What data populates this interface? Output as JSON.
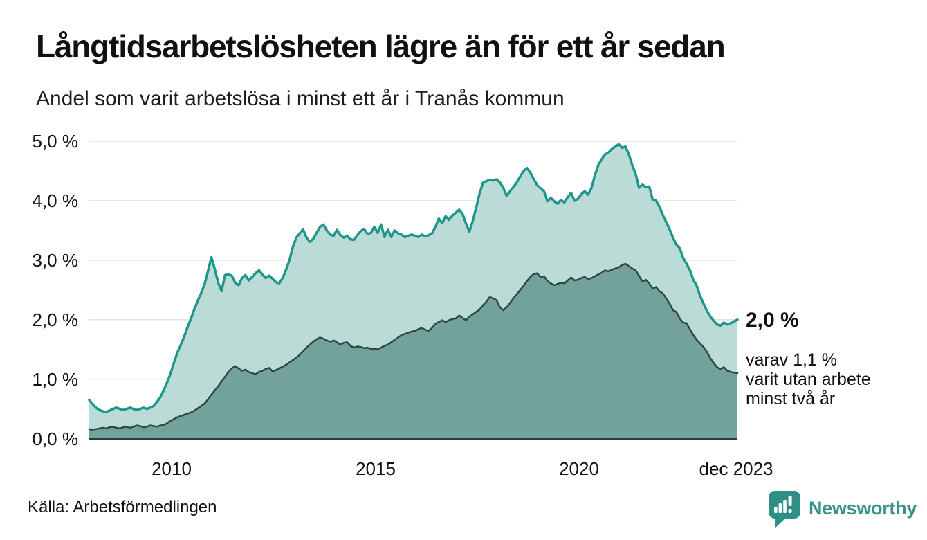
{
  "header": {
    "title": "Långtidsarbetslösheten lägre än för ett år sedan",
    "subtitle": "Andel som varit arbetslösa i minst ett år i Tranås kommun"
  },
  "chart_data": {
    "type": "area",
    "title": "Långtidsarbetslösheten lägre än för ett år sedan",
    "subtitle": "Andel som varit arbetslösa i minst ett år i Tranås kommun",
    "unit": "%",
    "x_start": "jan 2008",
    "x_end": "dec 2023",
    "x_frequency": "monthly",
    "x_tick_labels": [
      "2010",
      "2015",
      "2020",
      "dec 2023"
    ],
    "y_tick_labels": [
      "5,0 %",
      "4,0 %",
      "3,0 %",
      "2,0 %",
      "1,0 %",
      "0,0 %"
    ],
    "y_tick_values": [
      5.0,
      4.0,
      3.0,
      2.0,
      1.0,
      0.0
    ],
    "ylim": [
      0,
      5.0
    ],
    "grid": "horizontal",
    "legend_position": "none",
    "series": [
      {
        "name": "Arbetslösa minst ett år",
        "color": "#1e968b",
        "fill": "#b4d8d2",
        "fill_opacity": 0.92,
        "stroke_width": 3.5,
        "last_value": 2.0,
        "values": [
          0.65,
          0.58,
          0.52,
          0.48,
          0.46,
          0.45,
          0.47,
          0.5,
          0.52,
          0.5,
          0.48,
          0.5,
          0.52,
          0.5,
          0.48,
          0.5,
          0.52,
          0.5,
          0.52,
          0.55,
          0.62,
          0.7,
          0.82,
          0.95,
          1.1,
          1.28,
          1.45,
          1.58,
          1.72,
          1.88,
          2.02,
          2.18,
          2.32,
          2.45,
          2.6,
          2.82,
          3.05,
          2.85,
          2.62,
          2.48,
          2.75,
          2.76,
          2.74,
          2.62,
          2.58,
          2.7,
          2.75,
          2.66,
          2.72,
          2.78,
          2.83,
          2.76,
          2.7,
          2.74,
          2.69,
          2.63,
          2.61,
          2.7,
          2.84,
          3.0,
          3.22,
          3.38,
          3.45,
          3.52,
          3.38,
          3.31,
          3.36,
          3.46,
          3.56,
          3.6,
          3.5,
          3.43,
          3.41,
          3.51,
          3.42,
          3.38,
          3.41,
          3.35,
          3.34,
          3.42,
          3.49,
          3.52,
          3.44,
          3.46,
          3.56,
          3.46,
          3.6,
          3.39,
          3.51,
          3.39,
          3.5,
          3.45,
          3.43,
          3.39,
          3.41,
          3.43,
          3.41,
          3.39,
          3.43,
          3.4,
          3.42,
          3.45,
          3.56,
          3.7,
          3.62,
          3.74,
          3.68,
          3.75,
          3.8,
          3.85,
          3.78,
          3.62,
          3.48,
          3.66,
          3.88,
          4.12,
          4.3,
          4.33,
          4.35,
          4.34,
          4.36,
          4.31,
          4.22,
          4.08,
          4.16,
          4.23,
          4.31,
          4.41,
          4.5,
          4.55,
          4.47,
          4.36,
          4.26,
          4.21,
          4.16,
          3.99,
          4.05,
          3.99,
          3.95,
          4.01,
          3.97,
          4.06,
          4.13,
          4.0,
          4.03,
          4.11,
          4.16,
          4.1,
          4.22,
          4.43,
          4.6,
          4.7,
          4.78,
          4.81,
          4.87,
          4.91,
          4.95,
          4.89,
          4.91,
          4.78,
          4.6,
          4.45,
          4.22,
          4.27,
          4.23,
          4.24,
          4.02,
          4.0,
          3.9,
          3.76,
          3.64,
          3.52,
          3.38,
          3.26,
          3.2,
          3.04,
          2.94,
          2.83,
          2.67,
          2.57,
          2.4,
          2.27,
          2.15,
          2.05,
          1.98,
          1.92,
          1.9,
          1.95,
          1.92,
          1.94,
          1.97,
          2.0
        ]
      },
      {
        "name": "Varav arbetslösa minst två år",
        "color": "#2e4843",
        "fill": "#72a29b",
        "fill_opacity": 1,
        "stroke_width": 2.5,
        "last_value": 1.1,
        "values": [
          0.16,
          0.15,
          0.16,
          0.17,
          0.18,
          0.17,
          0.19,
          0.2,
          0.18,
          0.17,
          0.19,
          0.2,
          0.18,
          0.2,
          0.22,
          0.21,
          0.19,
          0.2,
          0.22,
          0.21,
          0.2,
          0.22,
          0.23,
          0.26,
          0.3,
          0.33,
          0.36,
          0.38,
          0.4,
          0.42,
          0.44,
          0.47,
          0.51,
          0.55,
          0.59,
          0.66,
          0.74,
          0.81,
          0.88,
          0.96,
          1.04,
          1.12,
          1.18,
          1.22,
          1.18,
          1.14,
          1.16,
          1.12,
          1.1,
          1.08,
          1.12,
          1.14,
          1.17,
          1.19,
          1.13,
          1.15,
          1.18,
          1.21,
          1.24,
          1.28,
          1.32,
          1.36,
          1.41,
          1.47,
          1.53,
          1.58,
          1.63,
          1.67,
          1.7,
          1.68,
          1.65,
          1.63,
          1.65,
          1.62,
          1.58,
          1.61,
          1.62,
          1.56,
          1.53,
          1.55,
          1.54,
          1.52,
          1.53,
          1.51,
          1.51,
          1.5,
          1.53,
          1.56,
          1.58,
          1.62,
          1.66,
          1.7,
          1.74,
          1.76,
          1.78,
          1.8,
          1.81,
          1.84,
          1.86,
          1.83,
          1.81,
          1.86,
          1.93,
          1.96,
          1.99,
          1.96,
          1.99,
          2.01,
          2.02,
          2.07,
          2.03,
          1.99,
          2.05,
          2.09,
          2.13,
          2.17,
          2.24,
          2.3,
          2.38,
          2.36,
          2.33,
          2.21,
          2.16,
          2.21,
          2.28,
          2.36,
          2.43,
          2.5,
          2.57,
          2.65,
          2.72,
          2.77,
          2.78,
          2.71,
          2.73,
          2.65,
          2.61,
          2.58,
          2.6,
          2.62,
          2.61,
          2.66,
          2.71,
          2.66,
          2.67,
          2.7,
          2.72,
          2.68,
          2.7,
          2.73,
          2.76,
          2.79,
          2.83,
          2.81,
          2.84,
          2.86,
          2.88,
          2.92,
          2.94,
          2.9,
          2.86,
          2.83,
          2.74,
          2.64,
          2.67,
          2.61,
          2.52,
          2.55,
          2.48,
          2.44,
          2.36,
          2.27,
          2.16,
          2.13,
          2.02,
          1.95,
          1.94,
          1.84,
          1.74,
          1.66,
          1.6,
          1.54,
          1.46,
          1.35,
          1.27,
          1.2,
          1.17,
          1.2,
          1.14,
          1.12,
          1.11,
          1.1
        ]
      }
    ],
    "annotation": {
      "value_label": "2,0 %",
      "lines": [
        "varav 1,1 %",
        "varit utan arbete",
        "minst två år"
      ]
    },
    "colors": {
      "grid": "#e2e2e2",
      "axis_line": "#2e3d3a",
      "text": "#111111"
    }
  },
  "footer": {
    "source": "Källa: Arbetsförmedlingen",
    "brand": "Newsworthy",
    "brand_color": "#37928a"
  }
}
